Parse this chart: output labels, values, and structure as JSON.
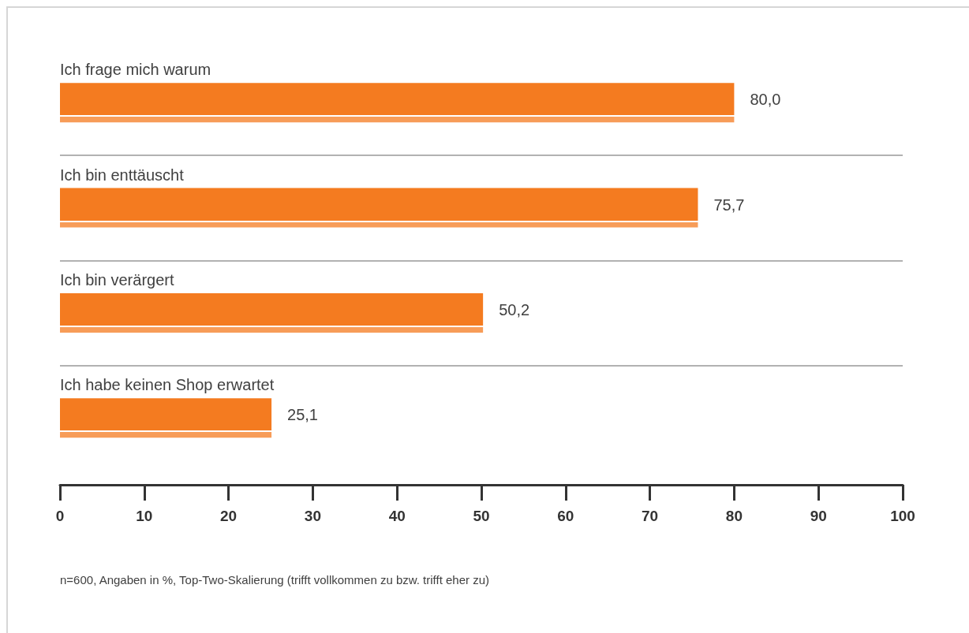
{
  "chart_data": {
    "type": "bar",
    "orientation": "horizontal",
    "categories": [
      "Ich frage mich warum",
      "Ich bin enttäuscht",
      "Ich bin verärgert",
      "Ich habe keinen Shop erwartet"
    ],
    "values": [
      80.0,
      75.7,
      50.2,
      25.1
    ],
    "value_labels": [
      "80,0",
      "75,7",
      "50,2",
      "25,1"
    ],
    "color": "#f47b20",
    "xlim": [
      0,
      100
    ],
    "xticks": [
      0,
      10,
      20,
      30,
      40,
      50,
      60,
      70,
      80,
      90,
      100
    ],
    "grid": "y",
    "annotations": [
      "n=600, Angaben in %, Top-Two-Skalierung (trifft vollkommen zu bzw. trifft eher zu)"
    ]
  }
}
